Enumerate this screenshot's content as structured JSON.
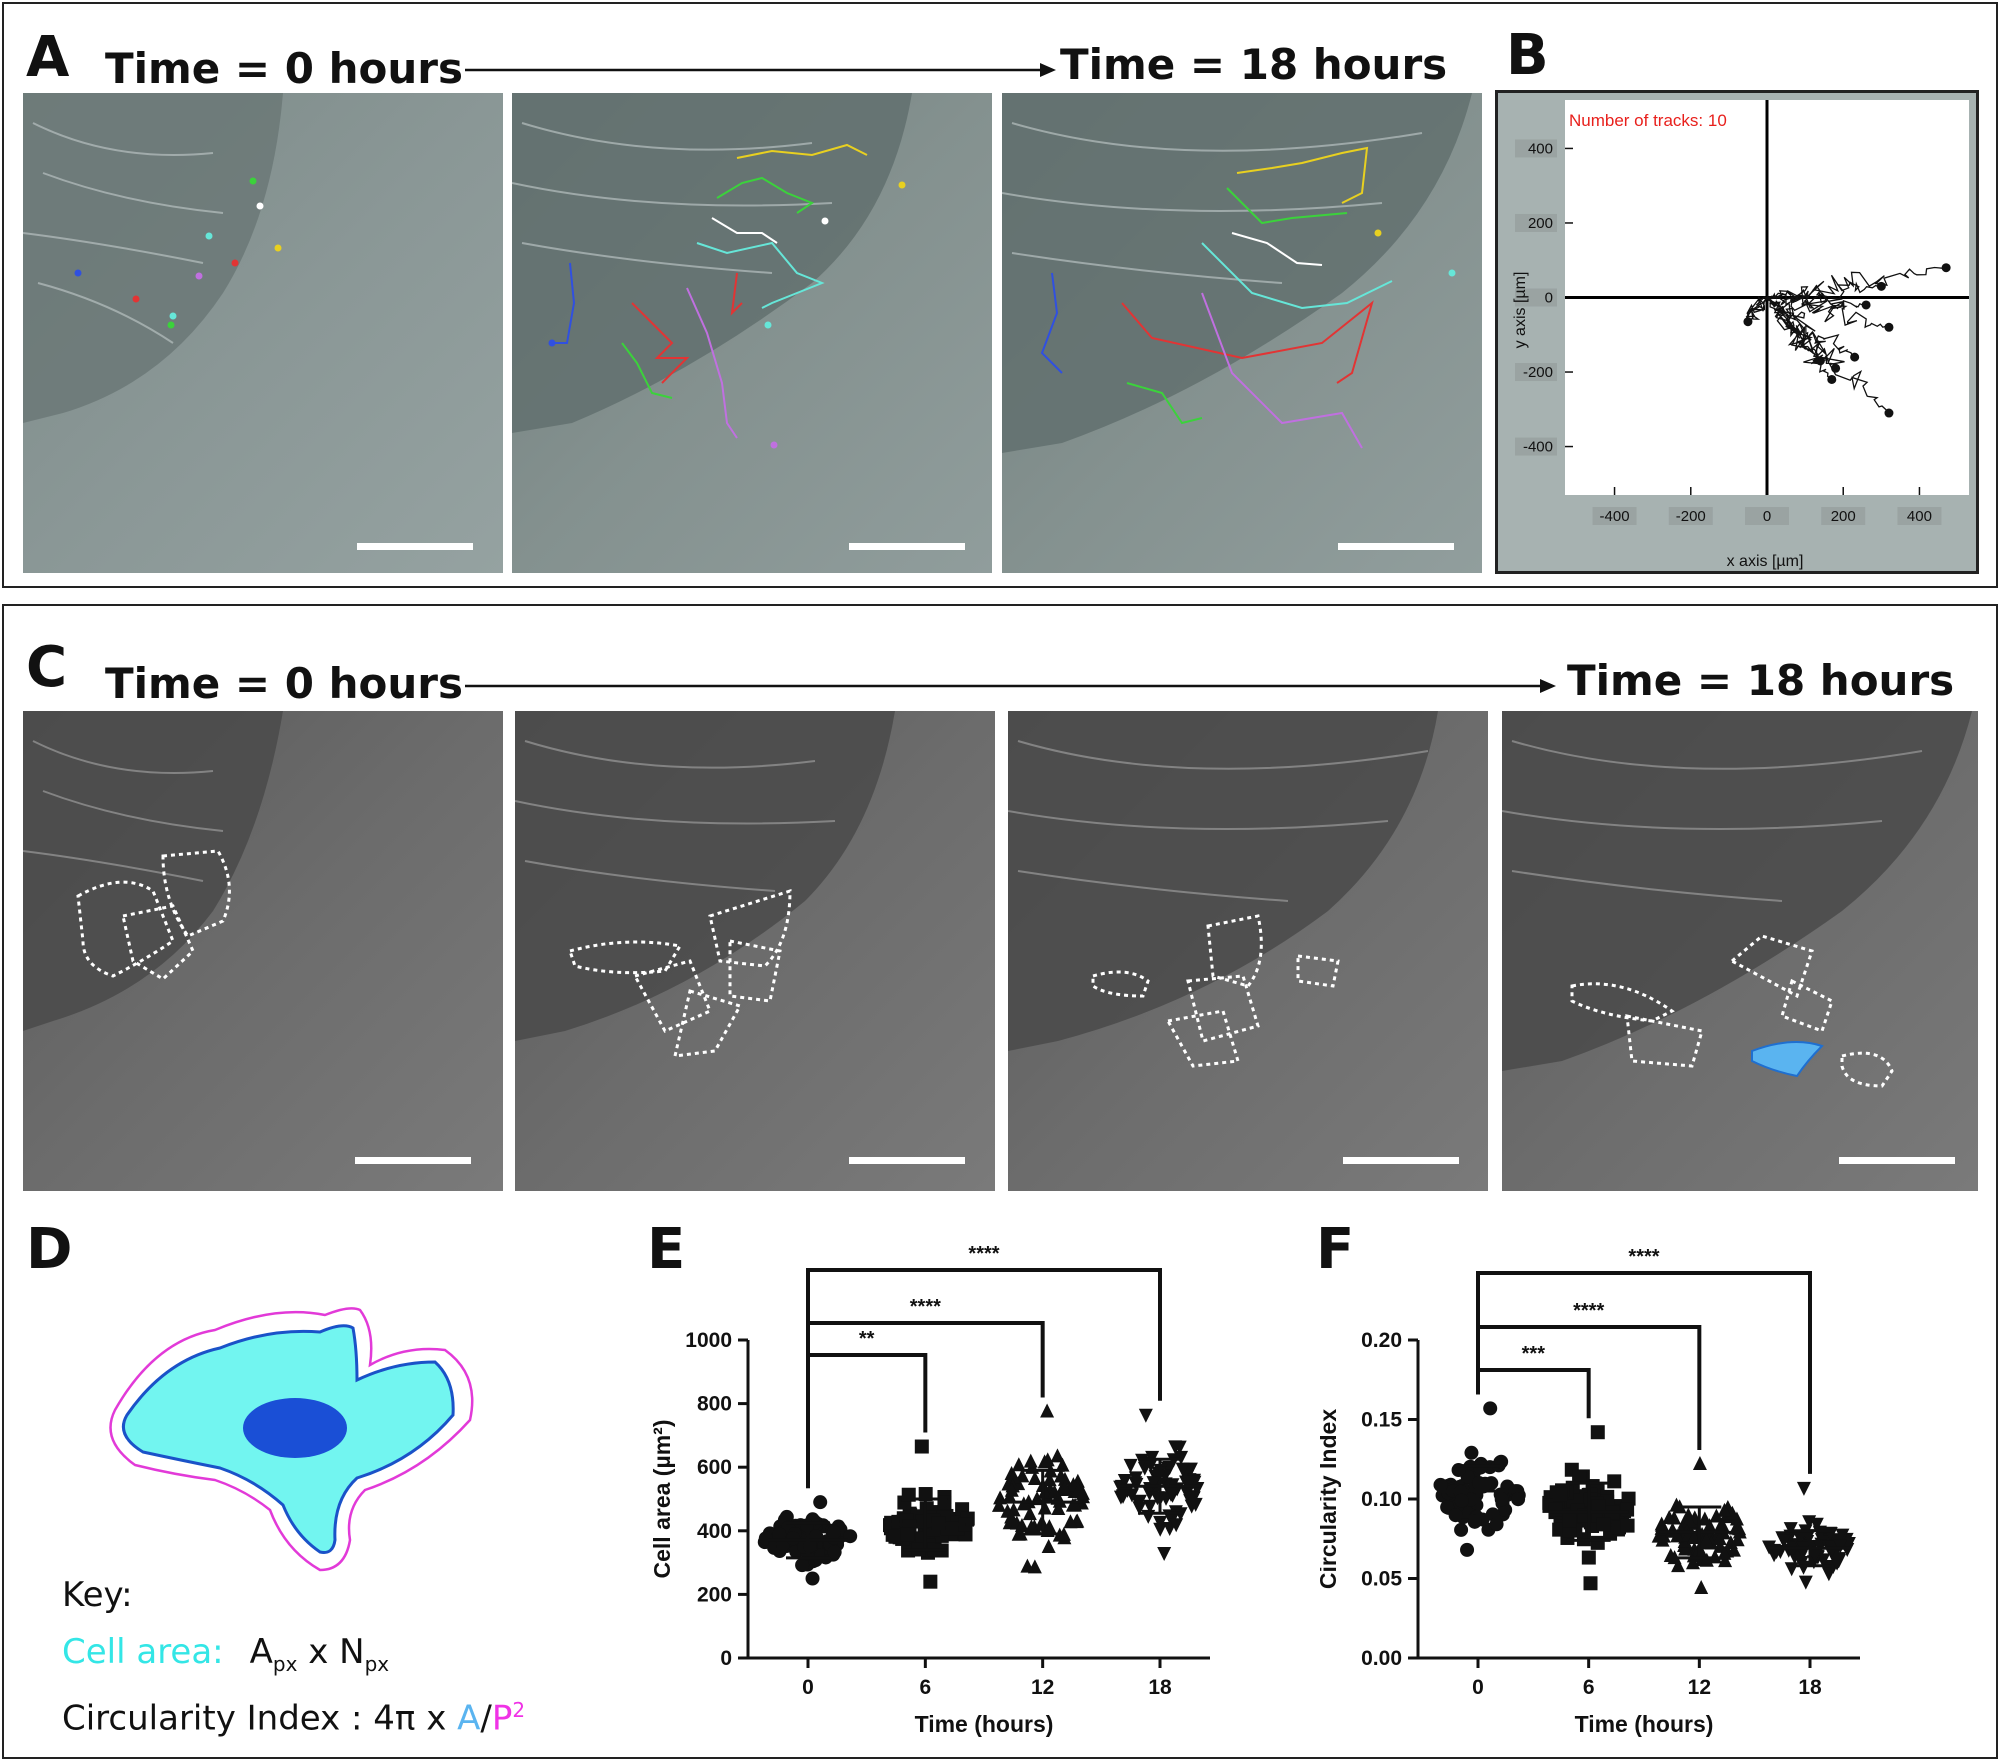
{
  "panel_a": {
    "label": "A",
    "time_start": "Time = 0 hours",
    "time_end": "Time = 18 hours"
  },
  "panel_b": {
    "label": "B",
    "annotation": "Number of tracks: 10"
  },
  "panel_c": {
    "label": "C",
    "time_start": "Time = 0 hours",
    "time_end": "Time = 18 hours"
  },
  "panel_d": {
    "label": "D",
    "key_title": "Key:",
    "cell_area_label": "Cell area:",
    "cell_area_formula_a": "A",
    "cell_area_formula_a_sub": "px",
    "cell_area_formula_mid": " x N",
    "cell_area_formula_n_sub": "px",
    "circularity_label": "Circularity Index : 4π x ",
    "circularity_a": "A",
    "circularity_slash": "/",
    "circularity_p": "P",
    "circularity_p_sup": "2",
    "colors": {
      "cell_fill": "#72f5f0",
      "cell_edge": "#1a52c8",
      "nucleus": "#1a4fd6",
      "perimeter": "#e23ad8",
      "cyan_text": "#33e6e6",
      "magenta_text": "#f032e6",
      "blue_text": "#5ab4f0"
    }
  },
  "panel_e": {
    "label": "E"
  },
  "panel_f": {
    "label": "F"
  },
  "chart_data": [
    {
      "type": "line",
      "panel": "B",
      "xlabel": "x axis [µm]",
      "ylabel": "y axis [µm]",
      "xlim": [
        -530,
        530
      ],
      "ylim": [
        -530,
        530
      ],
      "xticks": [
        -400,
        -200,
        0,
        200,
        400
      ],
      "yticks": [
        400,
        200,
        0,
        -200,
        -400
      ],
      "grid": false,
      "track_endpoints": [
        [
          470,
          80
        ],
        [
          300,
          30
        ],
        [
          260,
          -20
        ],
        [
          320,
          -80
        ],
        [
          -50,
          -65
        ],
        [
          140,
          -170
        ],
        [
          230,
          -160
        ],
        [
          180,
          -190
        ],
        [
          170,
          -220
        ],
        [
          320,
          -310
        ]
      ]
    },
    {
      "type": "scatter",
      "panel": "E",
      "ylabel": "Cell area (µm²)",
      "xlabel": "Time (hours)",
      "categories": [
        "0",
        "6",
        "12",
        "18"
      ],
      "ylim": [
        0,
        1000
      ],
      "yticks": [
        0,
        200,
        400,
        600,
        800,
        1000
      ],
      "markers": [
        "circle",
        "square",
        "triangle-up",
        "triangle-down"
      ],
      "series": [
        {
          "category": "0",
          "mean": 370,
          "sd": 55,
          "min": 250,
          "max": 490
        },
        {
          "category": "6",
          "mean": 420,
          "sd": 80,
          "min": 240,
          "max": 665
        },
        {
          "category": "12",
          "mean": 490,
          "sd": 100,
          "min": 285,
          "max": 775
        },
        {
          "category": "18",
          "mean": 540,
          "sd": 85,
          "min": 330,
          "max": 765
        }
      ],
      "significance": [
        {
          "from": "0",
          "to": "6",
          "label": "**"
        },
        {
          "from": "0",
          "to": "12",
          "label": "****"
        },
        {
          "from": "0",
          "to": "18",
          "label": "****"
        }
      ]
    },
    {
      "type": "scatter",
      "panel": "F",
      "ylabel": "Circularity Index",
      "xlabel": "Time (hours)",
      "categories": [
        "0",
        "6",
        "12",
        "18"
      ],
      "ylim": [
        0,
        0.2
      ],
      "yticks": [
        "0.00",
        "0.05",
        "0.10",
        "0.15",
        "0.20"
      ],
      "markers": [
        "circle",
        "square",
        "triangle-up",
        "triangle-down"
      ],
      "series": [
        {
          "category": "0",
          "mean": 0.105,
          "sd": 0.016,
          "min": 0.068,
          "max": 0.157
        },
        {
          "category": "6",
          "mean": 0.092,
          "sd": 0.018,
          "min": 0.047,
          "max": 0.142
        },
        {
          "category": "12",
          "mean": 0.079,
          "sd": 0.016,
          "min": 0.044,
          "max": 0.122
        },
        {
          "category": "18",
          "mean": 0.069,
          "sd": 0.011,
          "min": 0.048,
          "max": 0.107
        }
      ],
      "significance": [
        {
          "from": "0",
          "to": "6",
          "label": "***"
        },
        {
          "from": "0",
          "to": "12",
          "label": "****"
        },
        {
          "from": "0",
          "to": "18",
          "label": "****"
        }
      ]
    }
  ]
}
